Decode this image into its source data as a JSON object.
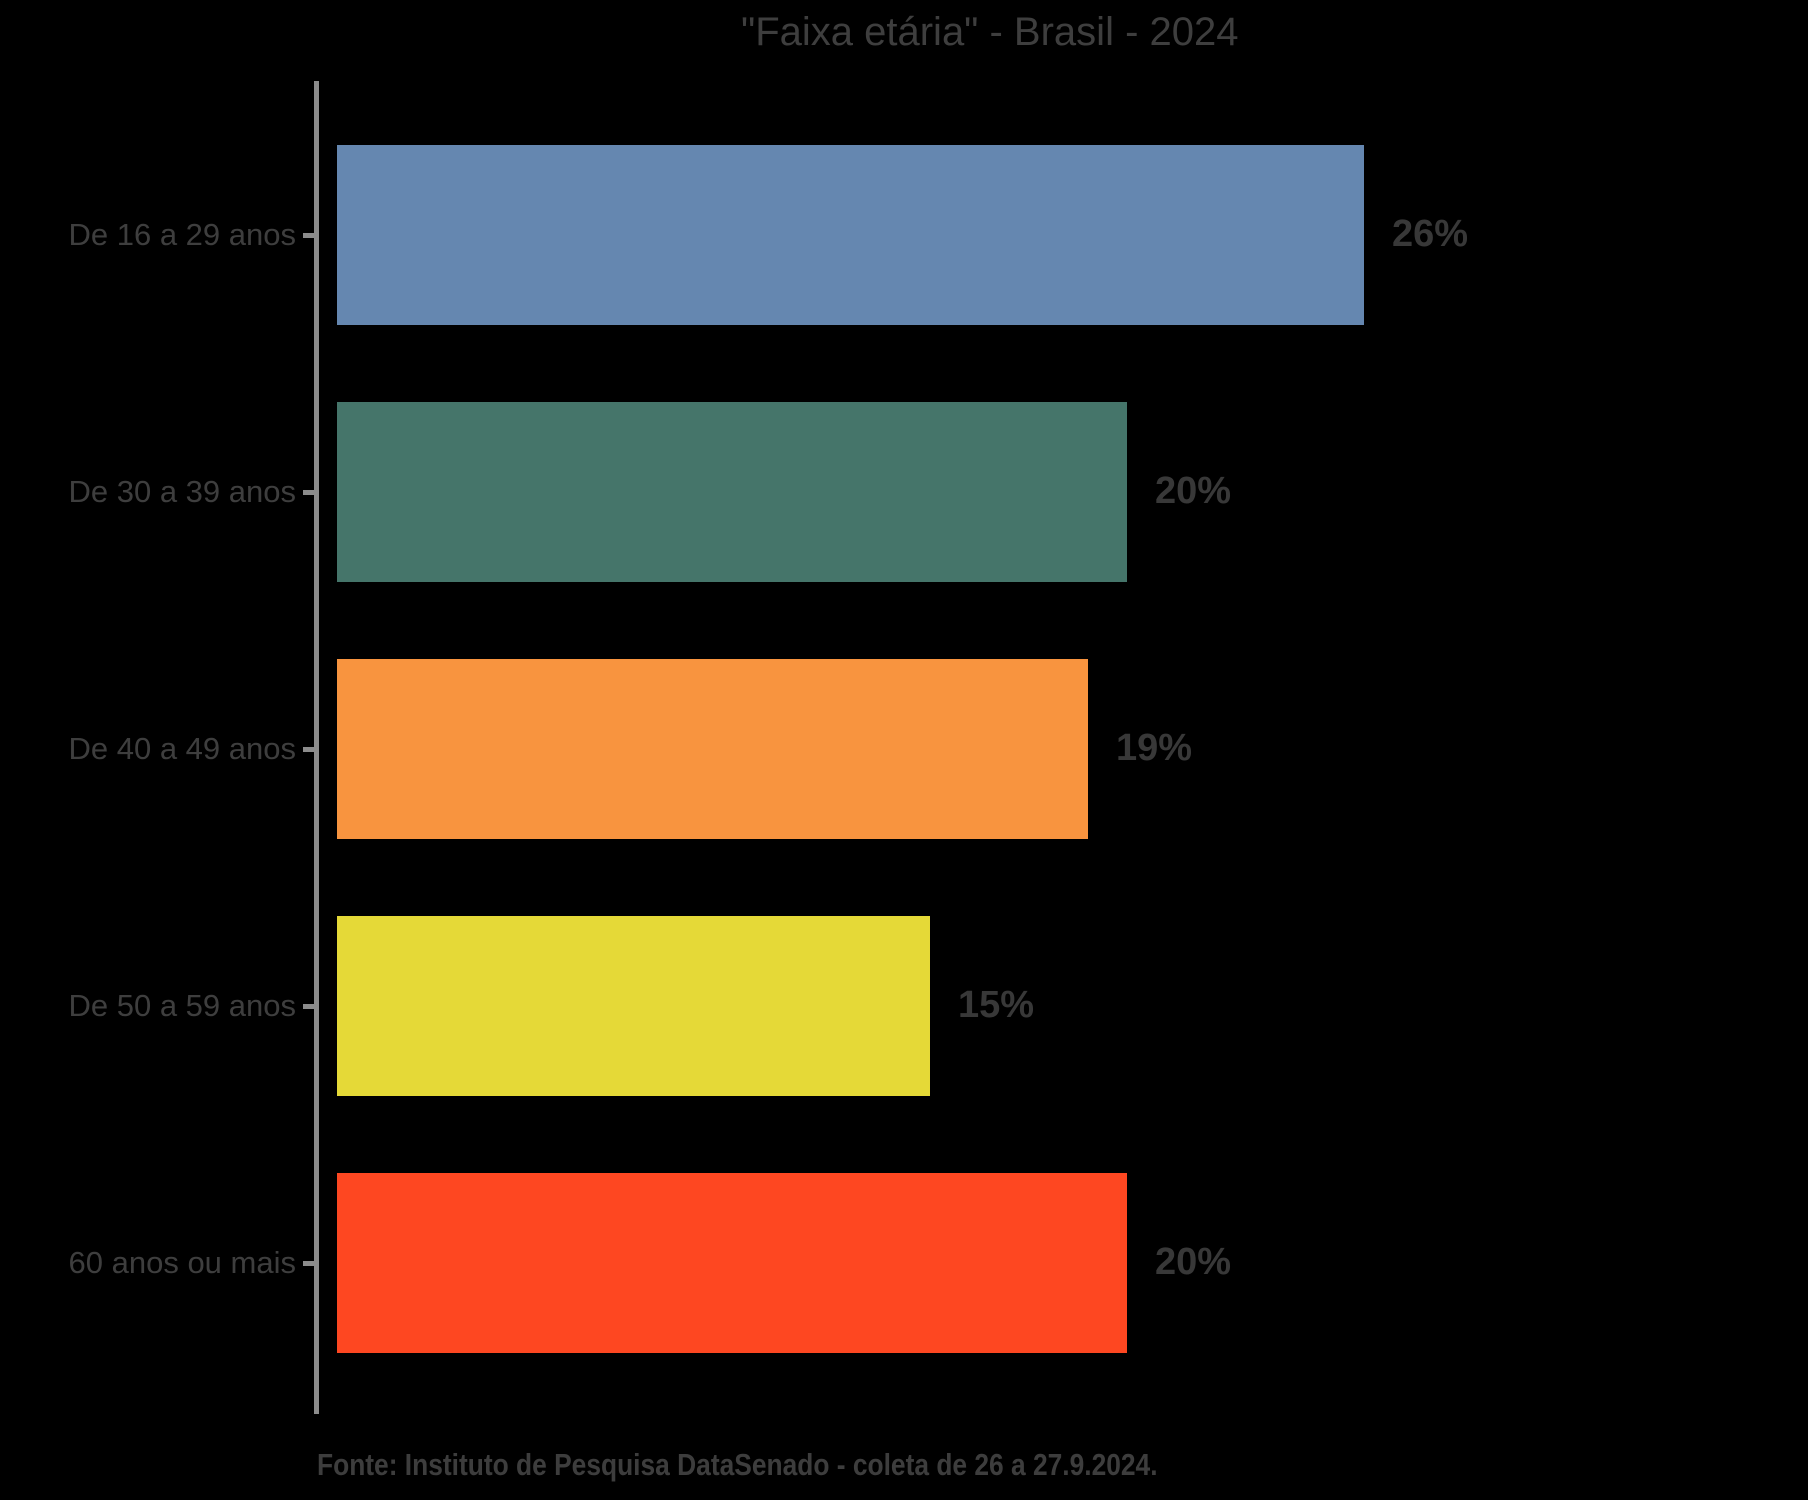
{
  "title": "\"Faixa etária\" - Brasil - 2024",
  "footer": "Fonte: Instituto de Pesquisa DataSenado - coleta de 26 a 27.9.2024.",
  "colors": {
    "background": "#000000",
    "axis_line": "#8c8c8c",
    "title_text": "#3e3e3e",
    "category_text": "#3e3e3e",
    "value_text": "#383838",
    "source_text": "#3d3d3d"
  },
  "chart_data": {
    "type": "bar",
    "orientation": "horizontal",
    "title": "\"Faixa etária\" - Brasil - 2024",
    "xlabel": "",
    "ylabel": "",
    "xlim": [
      0,
      29
    ],
    "grid": false,
    "legend": "none",
    "categories": [
      "De 16 a 29 anos",
      "De 30 a 39 anos",
      "De 40 a 49 anos",
      "De 50 a 59 anos",
      "60 anos ou mais"
    ],
    "values": [
      26,
      20,
      19,
      15,
      20
    ],
    "value_labels": [
      "26%",
      "20%",
      "19%",
      "15%",
      "20%"
    ],
    "bar_colors": [
      "#6587b0",
      "#45756a",
      "#f8943f",
      "#e5d937",
      "#fe4721"
    ],
    "source_note": "Fonte: Instituto de Pesquisa DataSenado - coleta de 26 a 27.9.2024."
  }
}
